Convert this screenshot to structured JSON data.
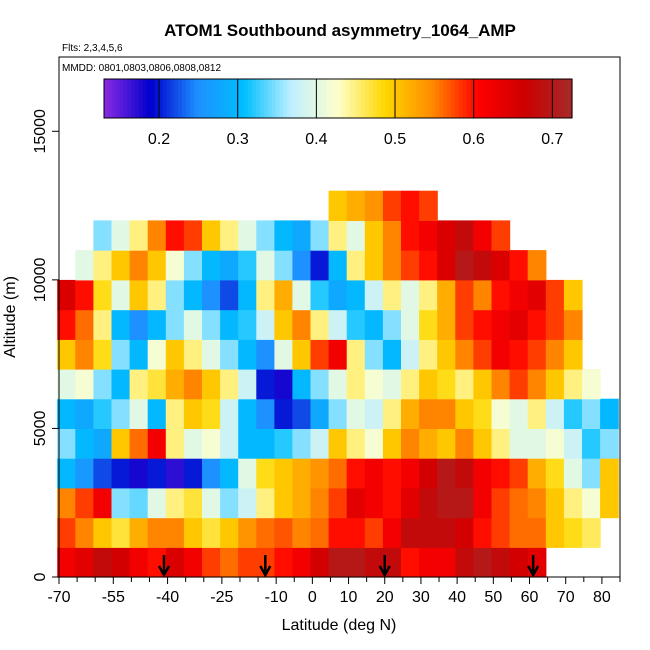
{
  "chart_data": {
    "type": "heatmap",
    "title": "ATOM1 Southbound asymmetry_1064_AMP",
    "flights_label": "Flts: 2,3,4,5,6",
    "dates_label": "MMDD: 0801,0803,0806,0808,0812",
    "xlabel": "Latitude (deg N)",
    "ylabel": "Altitude (m)",
    "xlim": [
      -70,
      85
    ],
    "ylim": [
      0,
      17500
    ],
    "x_tick_labels": [
      "-70",
      "-55",
      "-40",
      "-25",
      "-10",
      "0",
      "10",
      "20",
      "30",
      "40",
      "50",
      "60",
      "70",
      "80"
    ],
    "x_minor_ticks": [
      -65,
      -60,
      -50,
      -45,
      -35,
      -30,
      -20,
      -15,
      -5,
      5,
      15,
      25,
      35,
      45,
      55,
      65,
      75,
      85
    ],
    "y_ticks": [
      0,
      5000,
      10000,
      15000
    ],
    "y_tick_labels": [
      "0",
      "5000",
      "10000",
      "15000"
    ],
    "colorbar": {
      "min": 0.13,
      "max": 0.725,
      "ticks": [
        0.2,
        0.3,
        0.4,
        0.5,
        0.6,
        0.7
      ],
      "tick_labels": [
        "0.2",
        "0.3",
        "0.4",
        "0.5",
        "0.6",
        "0.7"
      ],
      "colors": [
        "#8a2be2",
        "#0000cd",
        "#1e90ff",
        "#00bfff",
        "#bfefff",
        "#ffffcc",
        "#ffd700",
        "#ff8c00",
        "#ff0000",
        "#cd0000",
        "#a52a2a"
      ]
    },
    "lat_bins": [
      -68,
      -63,
      -58,
      -53,
      -48,
      -43,
      -38,
      -33,
      -28,
      -23,
      -18,
      -13,
      -8,
      -3,
      2,
      7,
      12,
      17,
      22,
      27,
      32,
      37,
      42,
      47,
      52,
      57,
      62,
      67,
      72,
      77,
      82
    ],
    "alt_bins_km": [
      0.5,
      1.5,
      2.5,
      3.5,
      4.5,
      5.5,
      6.5,
      7.5,
      8.5,
      9.5,
      10.5,
      11.5,
      12.5
    ],
    "values": [
      [
        0.62,
        0.64,
        0.68,
        0.66,
        0.62,
        0.6,
        0.65,
        0.62,
        0.58,
        0.56,
        0.58,
        0.58,
        0.6,
        0.62,
        0.66,
        0.7,
        0.7,
        0.68,
        0.68,
        0.6,
        0.62,
        0.62,
        0.68,
        0.7,
        0.68,
        0.66,
        0.64,
        null,
        null,
        null,
        null
      ],
      [
        0.58,
        0.55,
        0.5,
        0.47,
        0.52,
        0.55,
        0.55,
        0.5,
        0.47,
        0.5,
        0.54,
        0.56,
        0.57,
        0.55,
        0.56,
        0.6,
        0.6,
        0.58,
        0.62,
        0.68,
        0.68,
        0.68,
        0.66,
        0.6,
        0.58,
        0.56,
        0.56,
        0.5,
        0.48,
        0.46,
        null
      ],
      [
        0.55,
        0.58,
        0.62,
        0.35,
        0.34,
        0.4,
        0.45,
        0.47,
        0.4,
        0.35,
        0.38,
        0.45,
        0.5,
        0.52,
        0.55,
        0.58,
        0.64,
        0.62,
        0.6,
        0.64,
        0.68,
        0.7,
        0.7,
        0.62,
        0.58,
        0.56,
        0.55,
        0.5,
        0.45,
        0.42,
        0.5
      ],
      [
        0.3,
        0.26,
        0.22,
        0.2,
        0.18,
        0.2,
        0.17,
        0.2,
        0.25,
        0.3,
        0.4,
        0.48,
        0.5,
        0.52,
        0.54,
        0.56,
        0.6,
        0.62,
        0.6,
        0.62,
        0.66,
        0.7,
        0.68,
        0.62,
        0.6,
        0.58,
        0.52,
        0.48,
        0.4,
        0.35,
        0.5
      ],
      [
        0.35,
        0.3,
        0.28,
        0.5,
        0.56,
        0.62,
        0.45,
        0.4,
        0.42,
        0.38,
        0.3,
        0.3,
        0.32,
        0.35,
        0.38,
        0.5,
        0.45,
        0.42,
        0.5,
        0.55,
        0.52,
        0.5,
        0.55,
        0.5,
        0.45,
        0.4,
        0.4,
        0.42,
        0.38,
        0.32,
        0.35
      ],
      [
        0.3,
        0.28,
        0.32,
        0.35,
        0.4,
        0.3,
        0.45,
        0.5,
        0.48,
        0.38,
        0.3,
        0.25,
        0.2,
        0.22,
        0.28,
        0.35,
        0.4,
        0.38,
        0.45,
        0.52,
        0.55,
        0.55,
        0.5,
        0.48,
        0.42,
        0.4,
        0.45,
        0.38,
        0.32,
        0.35,
        0.3
      ],
      [
        0.4,
        0.42,
        0.35,
        0.3,
        0.45,
        0.47,
        0.52,
        0.55,
        0.5,
        0.45,
        0.38,
        0.2,
        0.18,
        0.3,
        0.35,
        0.4,
        0.45,
        0.42,
        0.4,
        0.45,
        0.5,
        0.48,
        0.45,
        0.5,
        0.55,
        0.58,
        0.55,
        0.5,
        0.45,
        0.42,
        null
      ],
      [
        0.5,
        0.55,
        0.48,
        0.35,
        0.3,
        0.42,
        0.5,
        0.45,
        0.4,
        0.35,
        0.3,
        0.25,
        0.4,
        0.5,
        0.58,
        0.62,
        0.45,
        0.35,
        0.3,
        0.38,
        0.45,
        0.5,
        0.55,
        0.58,
        0.62,
        0.6,
        0.58,
        0.55,
        0.5,
        null,
        null
      ],
      [
        0.6,
        0.56,
        0.45,
        0.3,
        0.25,
        0.3,
        0.35,
        0.4,
        0.35,
        0.3,
        0.32,
        0.38,
        0.5,
        0.55,
        0.45,
        0.38,
        0.32,
        0.3,
        0.35,
        0.4,
        0.48,
        0.52,
        0.58,
        0.6,
        0.62,
        0.64,
        0.6,
        0.58,
        0.55,
        null,
        null
      ],
      [
        0.65,
        0.6,
        0.48,
        0.4,
        0.5,
        0.45,
        0.35,
        0.3,
        0.25,
        0.22,
        0.3,
        0.45,
        0.52,
        0.4,
        0.32,
        0.28,
        0.3,
        0.38,
        0.45,
        0.4,
        0.45,
        0.52,
        0.58,
        0.55,
        0.6,
        0.62,
        0.64,
        0.58,
        0.5,
        null,
        null
      ],
      [
        null,
        0.4,
        0.45,
        0.5,
        0.55,
        0.5,
        0.42,
        0.35,
        0.3,
        0.28,
        0.32,
        0.4,
        0.35,
        0.25,
        0.2,
        0.3,
        0.45,
        0.5,
        0.55,
        0.58,
        0.6,
        0.65,
        0.7,
        0.68,
        0.65,
        0.6,
        0.55,
        null,
        null,
        null,
        null
      ],
      [
        null,
        null,
        0.35,
        0.4,
        0.45,
        0.55,
        0.6,
        0.58,
        0.5,
        0.45,
        0.4,
        0.35,
        0.3,
        0.28,
        0.35,
        0.45,
        0.4,
        0.5,
        0.55,
        0.6,
        0.62,
        0.65,
        0.68,
        0.62,
        0.58,
        null,
        null,
        null,
        null,
        null,
        null
      ],
      [
        null,
        null,
        null,
        null,
        null,
        null,
        null,
        null,
        null,
        null,
        null,
        null,
        null,
        null,
        null,
        0.5,
        0.52,
        0.54,
        0.58,
        0.6,
        0.58,
        null,
        null,
        null,
        null,
        null,
        null,
        null,
        null,
        null,
        null
      ]
    ],
    "flight_markers_lat": [
      -41,
      -13,
      20,
      61
    ]
  }
}
